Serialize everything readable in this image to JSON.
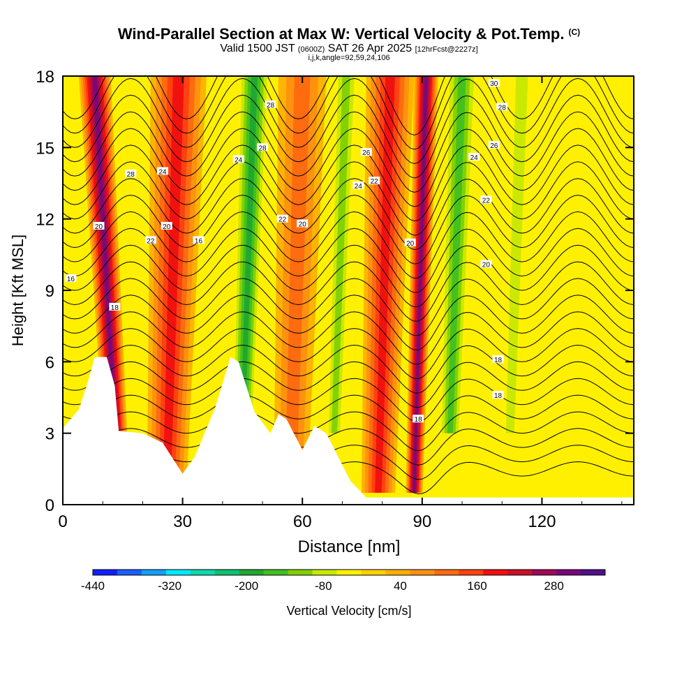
{
  "header": {
    "title_main": "Wind-Parallel Section at Max W: Vertical Velocity & Pot.Temp.",
    "title_copyright": "(C)",
    "valid_prefix": "Valid 1500 JST",
    "valid_utc": "(0600Z)",
    "valid_date": "SAT 26 Apr 2025",
    "forecast_tag": "[12hrFcst@2227z]",
    "indices": "i,j,k,angle=92,59,24,106"
  },
  "chart_data": {
    "type": "heatmap",
    "xlabel": "Distance [nm]",
    "ylabel": "Height [Kft MSL]",
    "xlim": [
      0,
      143
    ],
    "ylim": [
      0,
      18
    ],
    "x_ticks": [
      0,
      30,
      60,
      90,
      120
    ],
    "y_ticks": [
      0,
      3,
      6,
      9,
      12,
      15,
      18
    ],
    "colorbar": {
      "label": "Vertical Velocity [cm/s]",
      "min": -440,
      "max": 360,
      "step": 40,
      "tick_labels": [
        "-440",
        "-320",
        "-200",
        "-80",
        "40",
        "160",
        "280"
      ],
      "tick_values": [
        -440,
        -320,
        -200,
        -80,
        40,
        160,
        280
      ],
      "colors": [
        "#1020ff",
        "#1a60ff",
        "#10a0ff",
        "#00e8ff",
        "#10d8b0",
        "#10c070",
        "#20a830",
        "#40c020",
        "#80d000",
        "#c8e800",
        "#fff000",
        "#ffd000",
        "#ffb000",
        "#ff9010",
        "#ff6a10",
        "#ff4010",
        "#f01010",
        "#c8102a",
        "#a00858",
        "#78087a",
        "#50108a"
      ]
    },
    "vertical_velocity_bands": [
      {
        "x": 11,
        "w": 320,
        "width_nm": 4
      },
      {
        "x": 26,
        "w": 180,
        "width_nm": 7
      },
      {
        "x": 45,
        "w": -200,
        "width_nm": 4
      },
      {
        "x": 57,
        "w": 120,
        "width_nm": 6
      },
      {
        "x": 68,
        "w": -120,
        "width_nm": 3
      },
      {
        "x": 79,
        "w": 180,
        "width_nm": 6
      },
      {
        "x": 88,
        "w": 300,
        "width_nm": 3
      },
      {
        "x": 97,
        "w": -160,
        "width_nm": 4
      },
      {
        "x": 112,
        "w": -80,
        "width_nm": 3
      }
    ],
    "terrain": [
      {
        "x": 0,
        "y": 3.2
      },
      {
        "x": 4,
        "y": 4.0
      },
      {
        "x": 6,
        "y": 5.0
      },
      {
        "x": 8,
        "y": 6.2
      },
      {
        "x": 11,
        "y": 6.2
      },
      {
        "x": 13,
        "y": 5.0
      },
      {
        "x": 14,
        "y": 3.1
      },
      {
        "x": 20,
        "y": 3.0
      },
      {
        "x": 25,
        "y": 2.6
      },
      {
        "x": 30,
        "y": 1.3
      },
      {
        "x": 33,
        "y": 2.0
      },
      {
        "x": 38,
        "y": 4.0
      },
      {
        "x": 42,
        "y": 6.2
      },
      {
        "x": 44,
        "y": 6.0
      },
      {
        "x": 48,
        "y": 3.9
      },
      {
        "x": 52,
        "y": 3.0
      },
      {
        "x": 54,
        "y": 3.8
      },
      {
        "x": 56,
        "y": 3.6
      },
      {
        "x": 60,
        "y": 2.3
      },
      {
        "x": 63,
        "y": 3.3
      },
      {
        "x": 66,
        "y": 3.0
      },
      {
        "x": 72,
        "y": 1.0
      },
      {
        "x": 76,
        "y": 0.3
      },
      {
        "x": 143,
        "y": 0.3
      }
    ],
    "theta_contour_labels": [
      {
        "text": "16",
        "x": 2,
        "y": 9.5
      },
      {
        "text": "20",
        "x": 9,
        "y": 11.7
      },
      {
        "text": "18",
        "x": 13,
        "y": 8.3
      },
      {
        "text": "28",
        "x": 17,
        "y": 13.9
      },
      {
        "text": "24",
        "x": 25,
        "y": 14.0
      },
      {
        "text": "22",
        "x": 22,
        "y": 11.1
      },
      {
        "text": "20",
        "x": 26,
        "y": 11.7
      },
      {
        "text": "16",
        "x": 34,
        "y": 11.1
      },
      {
        "text": "24",
        "x": 44,
        "y": 14.5
      },
      {
        "text": "28",
        "x": 50,
        "y": 15.0
      },
      {
        "text": "28",
        "x": 52,
        "y": 16.8
      },
      {
        "text": "22",
        "x": 55,
        "y": 12.0
      },
      {
        "text": "20",
        "x": 60,
        "y": 11.8
      },
      {
        "text": "26",
        "x": 76,
        "y": 14.8
      },
      {
        "text": "24",
        "x": 74,
        "y": 13.4
      },
      {
        "text": "22",
        "x": 78,
        "y": 13.6
      },
      {
        "text": "20",
        "x": 87,
        "y": 11.0
      },
      {
        "text": "18",
        "x": 89,
        "y": 3.6
      },
      {
        "text": "24",
        "x": 103,
        "y": 14.6
      },
      {
        "text": "30",
        "x": 108,
        "y": 17.7
      },
      {
        "text": "28",
        "x": 110,
        "y": 16.7
      },
      {
        "text": "26",
        "x": 108,
        "y": 15.1
      },
      {
        "text": "22",
        "x": 106,
        "y": 12.8
      },
      {
        "text": "20",
        "x": 106,
        "y": 10.1
      },
      {
        "text": "18",
        "x": 109,
        "y": 6.1
      },
      {
        "text": "18",
        "x": 109,
        "y": 4.6
      }
    ]
  }
}
